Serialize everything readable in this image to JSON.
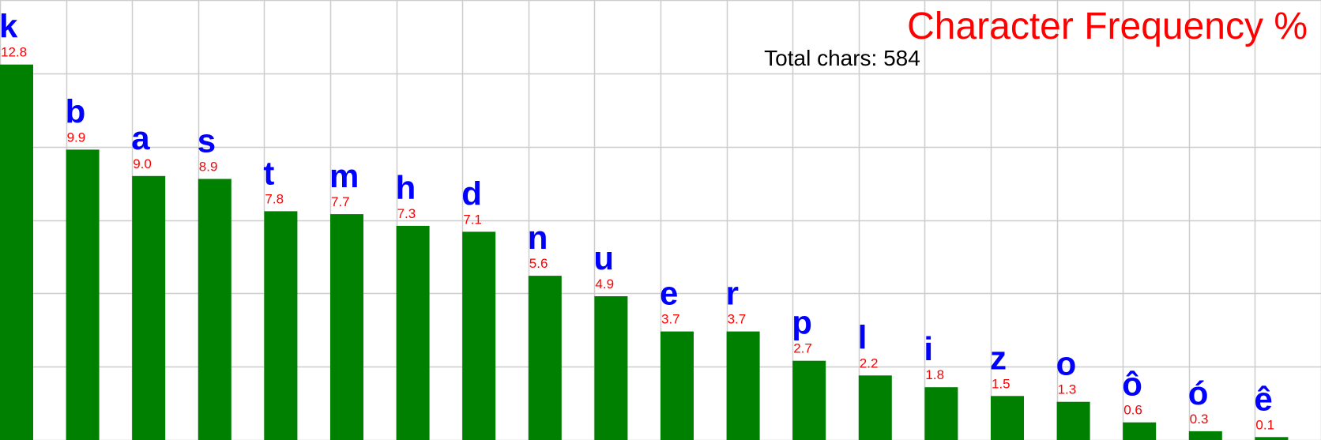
{
  "chart_data": {
    "type": "bar",
    "title": "Character Frequency %",
    "subtitle": "Total chars: 584",
    "categories": [
      "k",
      "b",
      "a",
      "s",
      "t",
      "m",
      "h",
      "d",
      "n",
      "u",
      "e",
      "r",
      "p",
      "l",
      "i",
      "z",
      "o",
      "ô",
      "ó",
      "ê"
    ],
    "values": [
      12.8,
      9.9,
      9.0,
      8.9,
      7.8,
      7.7,
      7.3,
      7.1,
      5.6,
      4.9,
      3.7,
      3.7,
      2.7,
      2.2,
      1.8,
      1.5,
      1.3,
      0.6,
      0.3,
      0.1
    ],
    "value_labels": [
      "12.8",
      "9.9",
      "9.0",
      "8.9",
      "7.8",
      "7.7",
      "7.3",
      "7.1",
      "5.6",
      "4.9",
      "3.7",
      "3.7",
      "2.7",
      "2.2",
      "1.8",
      "1.5",
      "1.3",
      "0.6",
      "0.3",
      "0.1"
    ],
    "ylim": [
      0,
      15
    ],
    "grid": true,
    "colors": {
      "bar": "#008000",
      "category_label": "#0000ff",
      "value_label": "#ff0000",
      "title": "#ff0000",
      "subtitle": "#000000",
      "grid": "#cccccc",
      "background": "#ffffff"
    }
  }
}
